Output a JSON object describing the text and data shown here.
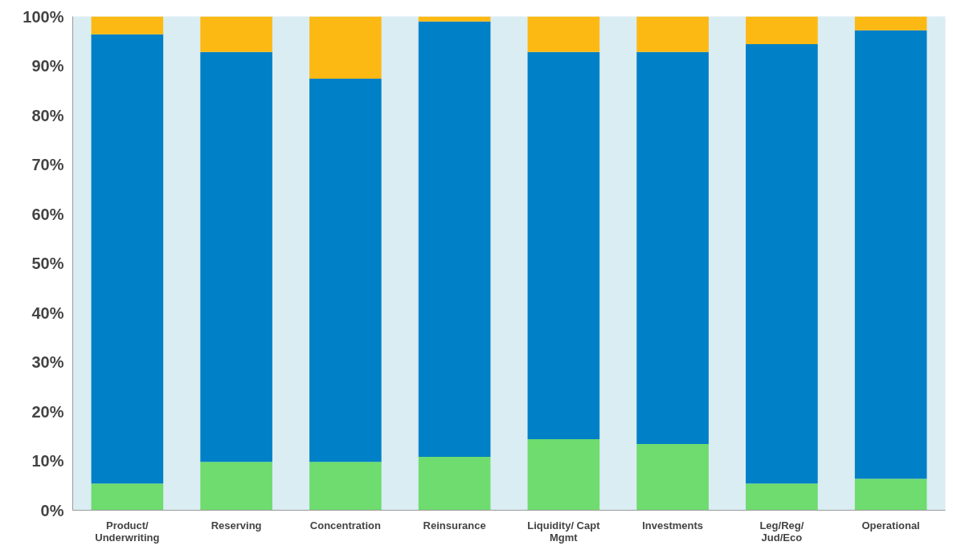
{
  "chart_data": {
    "type": "bar",
    "stacked": true,
    "categories": [
      "Product/ Underwriting",
      "Reserving",
      "Concentration",
      "Reinsurance",
      "Liquidity/ Capt Mgmt",
      "Investments",
      "Leg/Reg/ Jud/Eco",
      "Operational"
    ],
    "series": [
      {
        "color": "#6edc6e",
        "values": [
          5.4,
          9.8,
          9.8,
          10.8,
          14.4,
          13.4,
          5.4,
          6.4
        ]
      },
      {
        "color": "#0080c6",
        "values": [
          91.0,
          83.0,
          77.6,
          88.2,
          78.4,
          79.4,
          89.0,
          90.8
        ]
      },
      {
        "color": "#fdb913",
        "values": [
          3.6,
          7.2,
          12.6,
          1.0,
          7.2,
          7.2,
          5.6,
          2.8
        ]
      }
    ],
    "ylim": [
      0,
      100
    ],
    "yticks": [
      {
        "value": 0,
        "label": "0%"
      },
      {
        "value": 10,
        "label": "10%"
      },
      {
        "value": 20,
        "label": "20%"
      },
      {
        "value": 30,
        "label": "30%"
      },
      {
        "value": 40,
        "label": "40%"
      },
      {
        "value": 50,
        "label": "50%"
      },
      {
        "value": 60,
        "label": "60%"
      },
      {
        "value": 70,
        "label": "70%"
      },
      {
        "value": 80,
        "label": "80%"
      },
      {
        "value": 90,
        "label": "90%"
      },
      {
        "value": 100,
        "label": "100%"
      }
    ],
    "grid": false
  }
}
